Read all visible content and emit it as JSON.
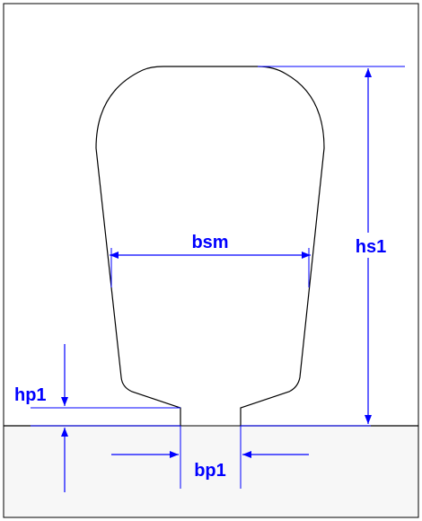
{
  "diagram": {
    "labels": {
      "bsm": "bsm",
      "hs1": "hs1",
      "hp1": "hp1",
      "bp1": "bp1"
    },
    "colors": {
      "outline": "#000000",
      "dimension": "#0000ff",
      "lower_region": "#f7f7f7",
      "background": "#ffffff"
    }
  }
}
